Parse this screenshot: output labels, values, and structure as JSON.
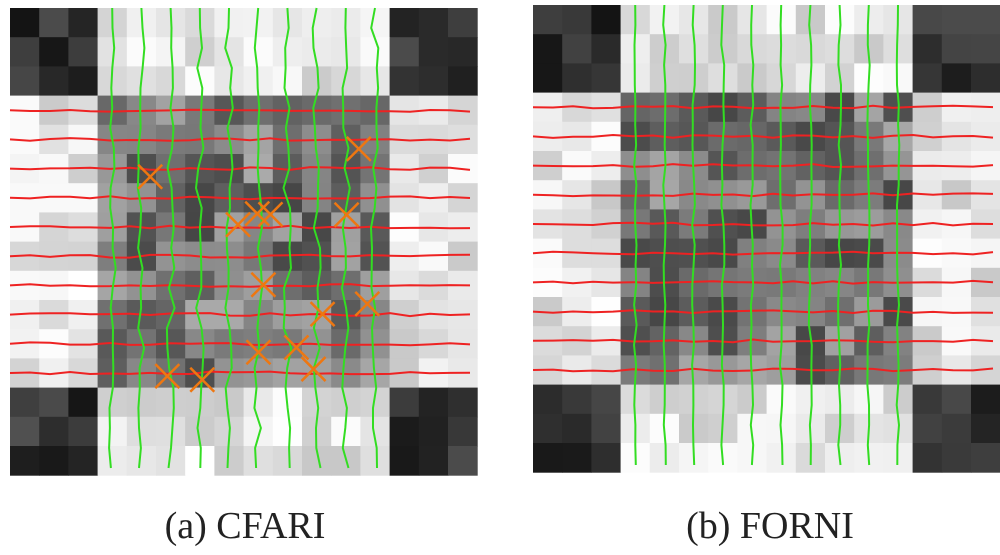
{
  "panels": [
    {
      "caption": "(a) CFARI"
    },
    {
      "caption": "(b) FORNI"
    }
  ]
}
